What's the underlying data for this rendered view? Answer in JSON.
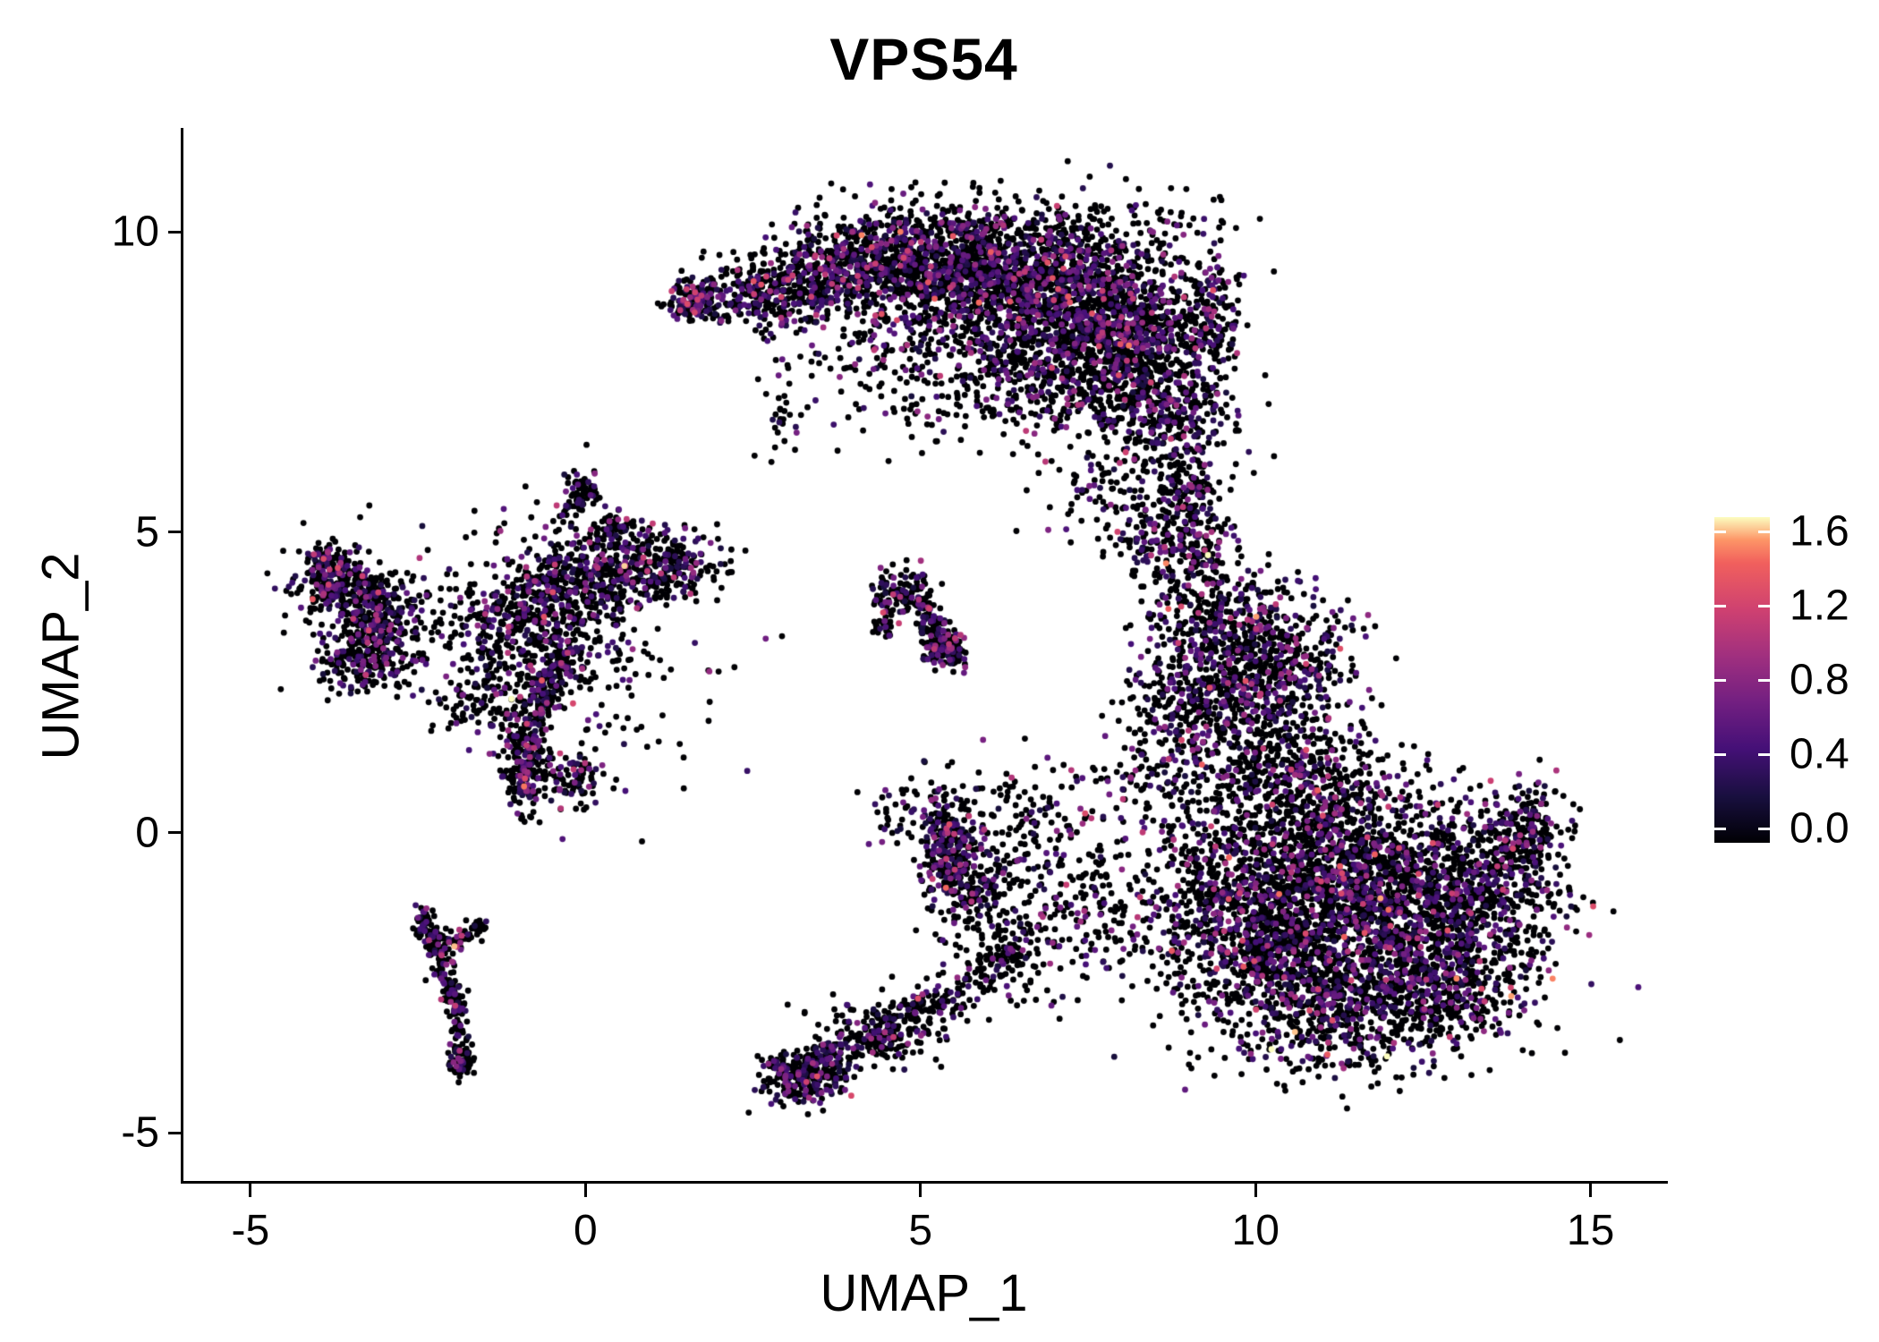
{
  "chart_data": {
    "type": "scatter",
    "title": "VPS54",
    "xlabel": "UMAP_1",
    "ylabel": "UMAP_2",
    "x_ticks": [
      -5,
      0,
      5,
      10,
      15
    ],
    "y_ticks": [
      -5,
      0,
      5,
      10
    ],
    "x_range": [
      -6.0,
      16.1
    ],
    "y_range": [
      -5.8,
      11.7
    ],
    "grid": false,
    "background": "#ffffff",
    "axis_color": "#000000",
    "point_radius_px": 3.4,
    "encoding": {
      "color": "expression",
      "colormap": "magma"
    },
    "colormap_stops": [
      {
        "t": 0.0,
        "c": "#000004"
      },
      {
        "t": 0.14,
        "c": "#180f3e"
      },
      {
        "t": 0.29,
        "c": "#451077"
      },
      {
        "t": 0.43,
        "c": "#721f81"
      },
      {
        "t": 0.57,
        "c": "#9f2f7f"
      },
      {
        "t": 0.71,
        "c": "#cd4071"
      },
      {
        "t": 0.86,
        "c": "#f1605d"
      },
      {
        "t": 0.93,
        "c": "#fd9567"
      },
      {
        "t": 1.0,
        "c": "#fcfdbf"
      }
    ],
    "colorbar": {
      "position": "right",
      "vmin": 0.0,
      "vmax": 1.6,
      "ticks": [
        0.0,
        0.4,
        0.8,
        1.2,
        1.6
      ],
      "tick_labels": [
        "0.0",
        "0.4",
        "0.8",
        "1.2",
        "1.6"
      ]
    },
    "seed": 42,
    "clusters": [
      {
        "t": "b",
        "x": 1.65,
        "y": 8.85,
        "sx": 0.22,
        "sy": 0.18,
        "n": 140,
        "p": 0.55
      },
      {
        "t": "b",
        "x": 2.6,
        "y": 9.0,
        "sx": 0.45,
        "sy": 0.3,
        "n": 250,
        "p": 0.35
      },
      {
        "t": "b",
        "x": 3.6,
        "y": 9.35,
        "sx": 0.5,
        "sy": 0.4,
        "n": 350,
        "p": 0.3
      },
      {
        "t": "b",
        "x": 4.6,
        "y": 9.55,
        "sx": 0.55,
        "sy": 0.42,
        "n": 450,
        "p": 0.3
      },
      {
        "t": "b",
        "x": 5.7,
        "y": 9.4,
        "sx": 0.7,
        "sy": 0.5,
        "n": 700,
        "p": 0.3
      },
      {
        "t": "b",
        "x": 7.0,
        "y": 9.0,
        "sx": 0.8,
        "sy": 0.6,
        "n": 950,
        "p": 0.3
      },
      {
        "t": "b",
        "x": 8.2,
        "y": 8.3,
        "sx": 0.6,
        "sy": 0.65,
        "n": 750,
        "p": 0.3
      },
      {
        "t": "b",
        "x": 7.0,
        "y": 7.6,
        "sx": 0.9,
        "sy": 0.55,
        "n": 450,
        "p": 0.28
      },
      {
        "t": "b",
        "x": 8.6,
        "y": 6.9,
        "sx": 0.5,
        "sy": 0.55,
        "n": 350,
        "p": 0.28
      },
      {
        "t": "b",
        "x": 5.9,
        "y": 8.2,
        "sx": 1.1,
        "sy": 0.7,
        "n": 280,
        "p": 0.25
      },
      {
        "t": "b",
        "x": 9.35,
        "y": 8.6,
        "sx": 0.22,
        "sy": 0.5,
        "n": 140,
        "p": 0.3
      },
      {
        "t": "b",
        "x": 4.1,
        "y": 8.0,
        "sx": 0.8,
        "sy": 0.7,
        "n": 120,
        "p": 0.2
      },
      {
        "t": "b",
        "x": 6.8,
        "y": 10.0,
        "sx": 1.2,
        "sy": 0.35,
        "n": 120,
        "p": 0.25
      },
      {
        "t": "b",
        "x": 8.95,
        "y": 5.4,
        "sx": 0.3,
        "sy": 0.5,
        "n": 160,
        "p": 0.3
      },
      {
        "t": "b",
        "x": 9.1,
        "y": 4.4,
        "sx": 0.35,
        "sy": 0.5,
        "n": 160,
        "p": 0.3
      },
      {
        "t": "b",
        "x": 8.35,
        "y": 4.9,
        "sx": 0.25,
        "sy": 0.35,
        "n": 70,
        "p": 0.3
      },
      {
        "t": "b",
        "x": 9.6,
        "y": 3.4,
        "sx": 0.55,
        "sy": 0.5,
        "n": 350,
        "p": 0.3
      },
      {
        "t": "b",
        "x": 9.9,
        "y": 2.3,
        "sx": 0.65,
        "sy": 0.5,
        "n": 380,
        "p": 0.3
      },
      {
        "t": "b",
        "x": 8.9,
        "y": 2.2,
        "sx": 0.4,
        "sy": 0.5,
        "n": 180,
        "p": 0.3
      },
      {
        "t": "b",
        "x": 10.6,
        "y": 2.9,
        "sx": 0.5,
        "sy": 0.5,
        "n": 200,
        "p": 0.25
      },
      {
        "t": "b",
        "x": 10.0,
        "y": 1.4,
        "sx": 0.8,
        "sy": 0.4,
        "n": 150,
        "p": 0.25
      },
      {
        "t": "b",
        "x": 11.1,
        "y": -0.5,
        "sx": 1.0,
        "sy": 0.75,
        "n": 1200,
        "p": 0.28
      },
      {
        "t": "b",
        "x": 12.2,
        "y": -1.5,
        "sx": 1.0,
        "sy": 0.75,
        "n": 1100,
        "p": 0.28
      },
      {
        "t": "b",
        "x": 10.4,
        "y": -2.0,
        "sx": 0.8,
        "sy": 0.7,
        "n": 700,
        "p": 0.28
      },
      {
        "t": "b",
        "x": 13.5,
        "y": -0.7,
        "sx": 0.55,
        "sy": 0.6,
        "n": 400,
        "p": 0.28
      },
      {
        "t": "b",
        "x": 14.05,
        "y": 0.1,
        "sx": 0.3,
        "sy": 0.4,
        "n": 140,
        "p": 0.3
      },
      {
        "t": "b",
        "x": 11.4,
        "y": -3.1,
        "sx": 0.9,
        "sy": 0.5,
        "n": 450,
        "p": 0.28
      },
      {
        "t": "b",
        "x": 10.7,
        "y": 0.9,
        "sx": 0.8,
        "sy": 0.45,
        "n": 300,
        "p": 0.25
      },
      {
        "t": "b",
        "x": 9.4,
        "y": -1.0,
        "sx": 0.55,
        "sy": 0.8,
        "n": 300,
        "p": 0.28
      },
      {
        "t": "b",
        "x": 12.9,
        "y": -2.6,
        "sx": 0.6,
        "sy": 0.5,
        "n": 300,
        "p": 0.28
      },
      {
        "t": "b",
        "x": 7.4,
        "y": -1.3,
        "sx": 0.7,
        "sy": 0.65,
        "n": 220,
        "p": 0.22
      },
      {
        "t": "b",
        "x": 6.6,
        "y": 0.1,
        "sx": 0.5,
        "sy": 0.55,
        "n": 140,
        "p": 0.22
      },
      {
        "t": "b",
        "x": 5.45,
        "y": -0.2,
        "sx": 0.22,
        "sy": 0.45,
        "n": 240,
        "p": 0.35
      },
      {
        "t": "b",
        "x": 5.75,
        "y": -0.95,
        "sx": 0.3,
        "sy": 0.3,
        "n": 130,
        "p": 0.3
      },
      {
        "t": "b",
        "x": 6.2,
        "y": -2.0,
        "sx": 0.5,
        "sy": 0.5,
        "n": 100,
        "p": 0.2
      },
      {
        "t": "b",
        "x": 3.25,
        "y": -4.05,
        "sx": 0.3,
        "sy": 0.22,
        "n": 300,
        "p": 0.3
      },
      {
        "t": "l",
        "ax": 3.5,
        "ay": -3.85,
        "bx": 5.5,
        "by": -2.7,
        "j": 0.16,
        "n": 220,
        "p": 0.28
      },
      {
        "t": "b",
        "x": 4.4,
        "y": -3.3,
        "sx": 0.5,
        "sy": 0.35,
        "n": 130,
        "p": 0.25
      },
      {
        "t": "l",
        "ax": 5.5,
        "ay": -2.7,
        "bx": 6.4,
        "by": -1.9,
        "j": 0.2,
        "n": 80,
        "p": 0.22
      },
      {
        "t": "b",
        "x": -0.9,
        "y": 1.25,
        "sx": 0.18,
        "sy": 0.5,
        "n": 260,
        "p": 0.35
      },
      {
        "t": "l",
        "ax": -0.75,
        "ay": 2.1,
        "bx": -0.35,
        "by": 2.9,
        "j": 0.15,
        "n": 160,
        "p": 0.35
      },
      {
        "t": "b",
        "x": -1.15,
        "y": 3.45,
        "sx": 0.55,
        "sy": 0.5,
        "n": 300,
        "p": 0.3
      },
      {
        "t": "b",
        "x": -0.3,
        "y": 4.05,
        "sx": 0.55,
        "sy": 0.45,
        "n": 350,
        "p": 0.3
      },
      {
        "t": "b",
        "x": 0.6,
        "y": 4.4,
        "sx": 0.5,
        "sy": 0.35,
        "n": 220,
        "p": 0.3
      },
      {
        "t": "b",
        "x": 1.35,
        "y": 4.5,
        "sx": 0.35,
        "sy": 0.25,
        "n": 130,
        "p": 0.3
      },
      {
        "t": "b",
        "x": -0.1,
        "y": 3.2,
        "sx": 1.0,
        "sy": 1.1,
        "n": 260,
        "p": 0.22
      },
      {
        "t": "l",
        "ax": -0.25,
        "ay": 5.3,
        "bx": 0.0,
        "by": 5.9,
        "j": 0.1,
        "n": 70,
        "p": 0.3
      },
      {
        "t": "b",
        "x": 0.45,
        "y": 5.1,
        "sx": 0.15,
        "sy": 0.15,
        "n": 50,
        "p": 0.3
      },
      {
        "t": "b",
        "x": -1.7,
        "y": 2.2,
        "sx": 0.3,
        "sy": 0.3,
        "n": 70,
        "p": 0.25
      },
      {
        "t": "b",
        "x": -0.15,
        "y": 0.9,
        "sx": 0.3,
        "sy": 0.25,
        "n": 90,
        "p": 0.3
      },
      {
        "t": "b",
        "x": -3.85,
        "y": 4.3,
        "sx": 0.22,
        "sy": 0.28,
        "n": 180,
        "p": 0.35
      },
      {
        "t": "b",
        "x": -3.3,
        "y": 3.95,
        "sx": 0.3,
        "sy": 0.3,
        "n": 170,
        "p": 0.3
      },
      {
        "t": "b",
        "x": -3.0,
        "y": 3.3,
        "sx": 0.28,
        "sy": 0.38,
        "n": 220,
        "p": 0.35
      },
      {
        "t": "b",
        "x": -3.45,
        "y": 2.8,
        "sx": 0.3,
        "sy": 0.22,
        "n": 130,
        "p": 0.3
      },
      {
        "t": "b",
        "x": -3.35,
        "y": 3.6,
        "sx": 0.6,
        "sy": 0.65,
        "n": 110,
        "p": 0.25
      },
      {
        "t": "b",
        "x": 4.7,
        "y": 4.0,
        "sx": 0.22,
        "sy": 0.18,
        "n": 110,
        "p": 0.3
      },
      {
        "t": "l",
        "ax": 5.0,
        "ay": 3.75,
        "bx": 5.5,
        "by": 2.85,
        "j": 0.12,
        "n": 160,
        "p": 0.35
      },
      {
        "t": "b",
        "x": 5.35,
        "y": 3.05,
        "sx": 0.15,
        "sy": 0.15,
        "n": 70,
        "p": 0.35
      },
      {
        "t": "b",
        "x": 4.45,
        "y": 3.4,
        "sx": 0.1,
        "sy": 0.1,
        "n": 25,
        "p": 0.25
      },
      {
        "t": "l",
        "ax": -2.45,
        "ay": -1.3,
        "bx": -2.0,
        "by": -2.6,
        "j": 0.09,
        "n": 140,
        "p": 0.25
      },
      {
        "t": "l",
        "ax": -2.25,
        "ay": -1.95,
        "bx": -1.55,
        "by": -1.55,
        "j": 0.08,
        "n": 70,
        "p": 0.25
      },
      {
        "t": "l",
        "ax": -2.0,
        "ay": -2.6,
        "bx": -1.8,
        "by": -3.8,
        "j": 0.08,
        "n": 110,
        "p": 0.25
      },
      {
        "t": "b",
        "x": -1.85,
        "y": -3.85,
        "sx": 0.1,
        "sy": 0.12,
        "n": 40,
        "p": 0.3
      },
      {
        "t": "b",
        "x": 2.9,
        "y": 6.9,
        "sx": 0.25,
        "sy": 0.3,
        "n": 25,
        "p": 0.2
      },
      {
        "t": "b",
        "x": 7.6,
        "y": 5.6,
        "sx": 0.4,
        "sy": 0.45,
        "n": 60,
        "p": 0.25
      },
      {
        "t": "b",
        "x": 4.7,
        "y": 0.3,
        "sx": 0.3,
        "sy": 0.4,
        "n": 50,
        "p": 0.3
      },
      {
        "t": "b",
        "x": 8.3,
        "y": 0.9,
        "sx": 0.5,
        "sy": 0.6,
        "n": 90,
        "p": 0.25
      },
      {
        "t": "b",
        "x": 9.0,
        "y": 10.2,
        "sx": 0.5,
        "sy": 0.3,
        "n": 40,
        "p": 0.25
      }
    ]
  }
}
